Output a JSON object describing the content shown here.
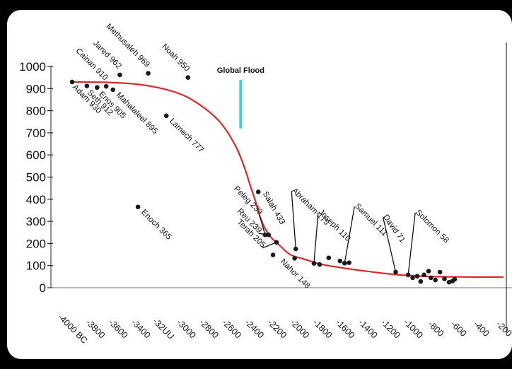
{
  "chart_data": {
    "type": "scatter",
    "title": "",
    "xlabel": "",
    "ylabel": "",
    "xlim": [
      -4000,
      -200
    ],
    "ylim": [
      0,
      1000
    ],
    "x_ticks": [
      -4000,
      -3800,
      -3600,
      -3400,
      -3200,
      -3000,
      -2800,
      -2600,
      -2400,
      -2200,
      -2000,
      -1800,
      -1600,
      -1400,
      -1200,
      -1000,
      -800,
      -600,
      -400,
      -200
    ],
    "x_tick_labels": [
      "-4000 BC",
      "-3800",
      "-3600",
      "-3400",
      "-32UU",
      "-3000",
      "-2800",
      "-2600",
      "-2400",
      "-2200",
      "-2000",
      "-1800",
      "-1600",
      "-1400",
      "-1200",
      "-1000",
      "-800",
      "-600",
      "-400",
      "-200"
    ],
    "y_ticks": [
      0,
      100,
      200,
      300,
      400,
      500,
      600,
      700,
      800,
      900,
      1000
    ],
    "y_tick_labels": [
      "0",
      "100",
      "200",
      "300",
      "400",
      "500",
      "600",
      "700",
      "800",
      "900",
      "1000"
    ],
    "grid": false,
    "points": [
      {
        "label": "Adam 930",
        "x": -4000,
        "y": 930
      },
      {
        "label": "Seth 912",
        "x": -3870,
        "y": 912
      },
      {
        "label": "Enos 905",
        "x": -3780,
        "y": 905
      },
      {
        "label": "Cainan 910",
        "x": -3700,
        "y": 910
      },
      {
        "label": "Mahalaleel 895",
        "x": -3640,
        "y": 895
      },
      {
        "label": "Jared 962",
        "x": -3580,
        "y": 962
      },
      {
        "label": "Enoch 365",
        "x": -3420,
        "y": 365
      },
      {
        "label": "Methusaleh 969",
        "x": -3330,
        "y": 969
      },
      {
        "label": "Lamech 777",
        "x": -3170,
        "y": 777
      },
      {
        "label": "Noah 950",
        "x": -2980,
        "y": 950
      },
      {
        "label": "Peleg 239",
        "x": -2300,
        "y": 239
      },
      {
        "label": "Salah 433",
        "x": -2360,
        "y": 433
      },
      {
        "label": "Reu 239",
        "x": -2270,
        "y": 239
      },
      {
        "label": "Terah 205",
        "x": -2200,
        "y": 205
      },
      {
        "label": "Nahor 148",
        "x": -2230,
        "y": 148
      },
      {
        "label": "Abraham 175",
        "x": -2030,
        "y": 175
      },
      {
        "label": "Joseph 110",
        "x": -1870,
        "y": 110
      },
      {
        "label": "Samuel 111",
        "x": -1600,
        "y": 111
      },
      {
        "label": "David 71",
        "x": -1150,
        "y": 71
      },
      {
        "label": "Solomon 58",
        "x": -1040,
        "y": 58
      }
    ],
    "other_points": [
      {
        "x": -2040,
        "y": 133
      },
      {
        "x": -1820,
        "y": 105
      },
      {
        "x": -1740,
        "y": 135
      },
      {
        "x": -1640,
        "y": 121
      },
      {
        "x": -1560,
        "y": 113
      },
      {
        "x": -1000,
        "y": 45
      },
      {
        "x": -960,
        "y": 52
      },
      {
        "x": -930,
        "y": 28
      },
      {
        "x": -900,
        "y": 58
      },
      {
        "x": -860,
        "y": 75
      },
      {
        "x": -840,
        "y": 45
      },
      {
        "x": -800,
        "y": 35
      },
      {
        "x": -760,
        "y": 70
      },
      {
        "x": -720,
        "y": 40
      },
      {
        "x": -680,
        "y": 25
      },
      {
        "x": -650,
        "y": 30
      },
      {
        "x": -630,
        "y": 38
      }
    ],
    "trend_curve": [
      [
        -4000,
        930
      ],
      [
        -3700,
        928
      ],
      [
        -3400,
        918
      ],
      [
        -3100,
        885
      ],
      [
        -2900,
        835
      ],
      [
        -2700,
        750
      ],
      [
        -2560,
        640
      ],
      [
        -2480,
        540
      ],
      [
        -2430,
        460
      ],
      [
        -2390,
        400
      ],
      [
        -2330,
        300
      ],
      [
        -2260,
        235
      ],
      [
        -2180,
        195
      ],
      [
        -2080,
        150
      ],
      [
        -1950,
        128
      ],
      [
        -1800,
        105
      ],
      [
        -1600,
        88
      ],
      [
        -1400,
        74
      ],
      [
        -1200,
        62
      ],
      [
        -1000,
        54
      ],
      [
        -800,
        50
      ],
      [
        -600,
        49
      ],
      [
        -400,
        48
      ],
      [
        -200,
        48
      ]
    ],
    "annotation": {
      "text": "Global Flood",
      "x": -2515,
      "y_top": 940,
      "y_bottom": 720
    },
    "right_axis_x": -200,
    "colors": {
      "curve": "#d62a2a",
      "flood_marker": "#3fcfdc",
      "points": "#1a1a1a",
      "text": "#111111",
      "frame": "#000000",
      "plot_bg": "#ffffff"
    }
  }
}
